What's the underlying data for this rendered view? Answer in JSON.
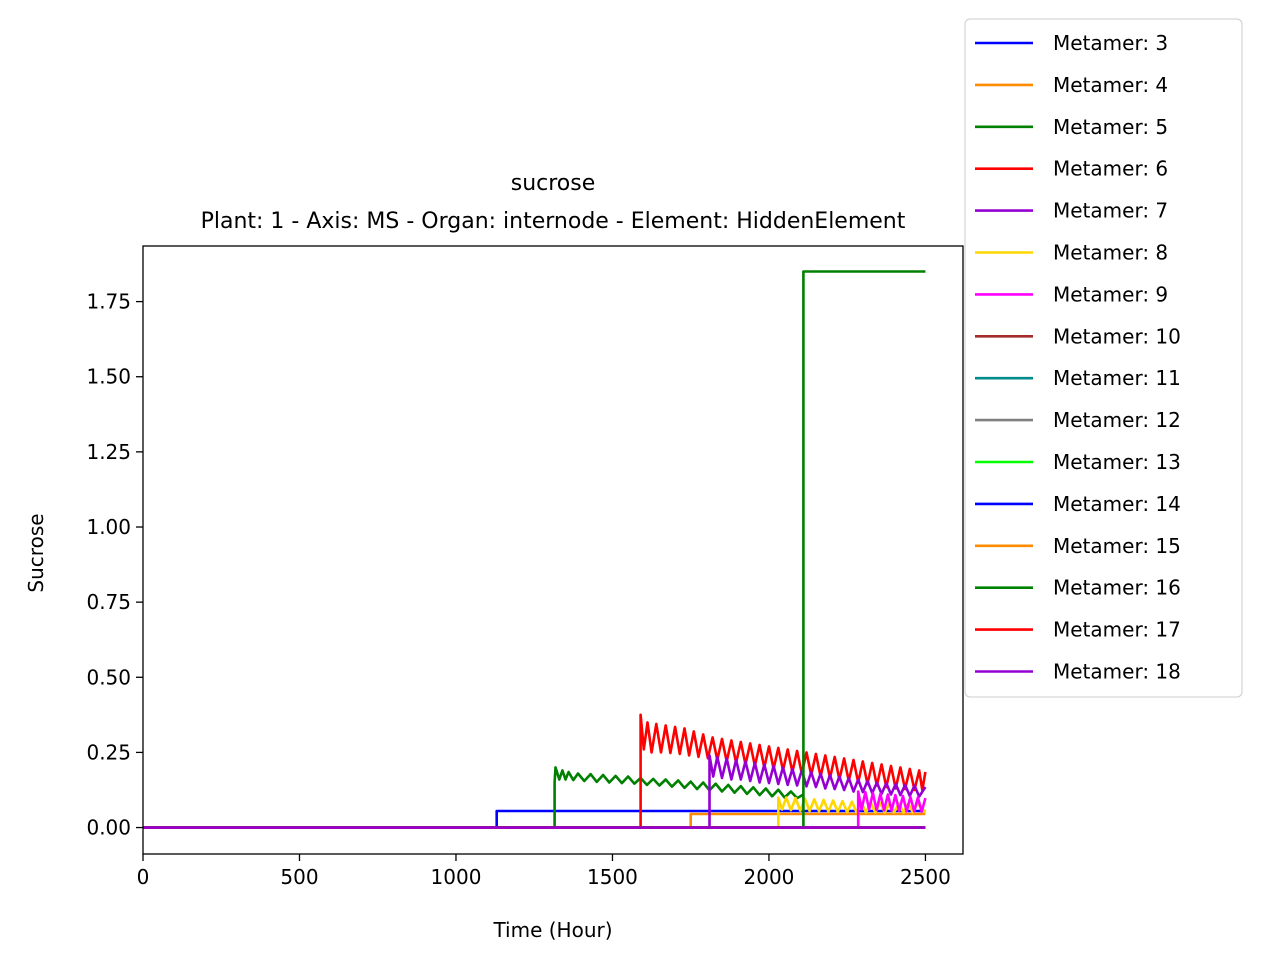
{
  "chart_data": {
    "type": "line",
    "title": "sucrose",
    "subtitle": "Plant: 1 - Axis: MS - Organ: internode - Element: HiddenElement",
    "xlabel": "Time (Hour)",
    "ylabel": "Sucrose",
    "xlim": [
      0,
      2620
    ],
    "ylim": [
      -0.088,
      1.935
    ],
    "xticks": [
      0,
      500,
      1000,
      1500,
      2000,
      2500
    ],
    "xtick_labels": [
      "0",
      "500",
      "1000",
      "1500",
      "2000",
      "2500"
    ],
    "yticks": [
      0.0,
      0.25,
      0.5,
      0.75,
      1.0,
      1.25,
      1.5,
      1.75
    ],
    "ytick_labels": [
      "0.00",
      "0.25",
      "0.50",
      "0.75",
      "1.00",
      "1.25",
      "1.50",
      "1.75"
    ],
    "grid": false,
    "legend_position": "upper-right-outside",
    "series": [
      {
        "name": "Metamer: 3",
        "color": "#0000ff",
        "points": [
          [
            0,
            0
          ],
          [
            1130,
            0
          ],
          [
            1130,
            0.055
          ],
          [
            2500,
            0.055
          ]
        ]
      },
      {
        "name": "Metamer: 4",
        "color": "#ff8c00",
        "points": [
          [
            0,
            0
          ],
          [
            1750,
            0
          ],
          [
            1750,
            0.045
          ],
          [
            2500,
            0.045
          ]
        ]
      },
      {
        "name": "Metamer: 5",
        "color": "#008000",
        "points": [
          [
            0,
            0
          ],
          [
            1315,
            0
          ],
          [
            1315,
            0.15
          ],
          [
            1318,
            0.2
          ],
          [
            1330,
            0.16
          ],
          [
            1340,
            0.19
          ],
          [
            1350,
            0.16
          ],
          [
            1360,
            0.185
          ],
          [
            1375,
            0.158
          ],
          [
            1390,
            0.18
          ],
          [
            1410,
            0.155
          ],
          [
            1430,
            0.178
          ],
          [
            1450,
            0.152
          ],
          [
            1470,
            0.175
          ],
          [
            1490,
            0.15
          ],
          [
            1510,
            0.172
          ],
          [
            1530,
            0.148
          ],
          [
            1550,
            0.17
          ],
          [
            1570,
            0.146
          ],
          [
            1590,
            0.165
          ],
          [
            1610,
            0.142
          ],
          [
            1630,
            0.162
          ],
          [
            1650,
            0.14
          ],
          [
            1670,
            0.16
          ],
          [
            1690,
            0.136
          ],
          [
            1710,
            0.157
          ],
          [
            1730,
            0.132
          ],
          [
            1750,
            0.153
          ],
          [
            1770,
            0.128
          ],
          [
            1790,
            0.15
          ],
          [
            1810,
            0.124
          ],
          [
            1830,
            0.146
          ],
          [
            1850,
            0.12
          ],
          [
            1870,
            0.142
          ],
          [
            1890,
            0.116
          ],
          [
            1910,
            0.138
          ],
          [
            1930,
            0.112
          ],
          [
            1950,
            0.134
          ],
          [
            1970,
            0.108
          ],
          [
            1990,
            0.13
          ],
          [
            2010,
            0.104
          ],
          [
            2030,
            0.126
          ],
          [
            2050,
            0.1
          ],
          [
            2070,
            0.12
          ],
          [
            2090,
            0.098
          ],
          [
            2110,
            0.11
          ]
        ]
      },
      {
        "name": "Metamer: 6",
        "color": "#ff0000",
        "points": [
          [
            0,
            0
          ],
          [
            1590,
            0
          ],
          [
            1590,
            0.375
          ],
          [
            1600,
            0.26
          ],
          [
            1612,
            0.35
          ],
          [
            1625,
            0.25
          ],
          [
            1640,
            0.345
          ],
          [
            1655,
            0.25
          ],
          [
            1670,
            0.34
          ],
          [
            1685,
            0.248
          ],
          [
            1700,
            0.335
          ],
          [
            1715,
            0.245
          ],
          [
            1730,
            0.33
          ],
          [
            1745,
            0.24
          ],
          [
            1760,
            0.32
          ],
          [
            1775,
            0.235
          ],
          [
            1790,
            0.31
          ],
          [
            1805,
            0.23
          ],
          [
            1820,
            0.3
          ],
          [
            1835,
            0.225
          ],
          [
            1850,
            0.295
          ],
          [
            1865,
            0.22
          ],
          [
            1880,
            0.29
          ],
          [
            1895,
            0.215
          ],
          [
            1910,
            0.285
          ],
          [
            1925,
            0.21
          ],
          [
            1940,
            0.28
          ],
          [
            1955,
            0.205
          ],
          [
            1970,
            0.275
          ],
          [
            1985,
            0.2
          ],
          [
            2000,
            0.27
          ],
          [
            2015,
            0.195
          ],
          [
            2030,
            0.265
          ],
          [
            2045,
            0.19
          ],
          [
            2060,
            0.26
          ],
          [
            2075,
            0.185
          ],
          [
            2090,
            0.255
          ],
          [
            2105,
            0.18
          ],
          [
            2120,
            0.25
          ],
          [
            2135,
            0.175
          ],
          [
            2150,
            0.245
          ],
          [
            2165,
            0.17
          ],
          [
            2180,
            0.24
          ],
          [
            2195,
            0.165
          ],
          [
            2210,
            0.235
          ],
          [
            2225,
            0.16
          ],
          [
            2240,
            0.23
          ],
          [
            2255,
            0.155
          ],
          [
            2270,
            0.225
          ],
          [
            2285,
            0.15
          ],
          [
            2300,
            0.22
          ],
          [
            2315,
            0.145
          ],
          [
            2330,
            0.215
          ],
          [
            2345,
            0.14
          ],
          [
            2360,
            0.21
          ],
          [
            2375,
            0.135
          ],
          [
            2390,
            0.205
          ],
          [
            2405,
            0.13
          ],
          [
            2420,
            0.2
          ],
          [
            2435,
            0.128
          ],
          [
            2450,
            0.195
          ],
          [
            2465,
            0.125
          ],
          [
            2480,
            0.19
          ],
          [
            2490,
            0.125
          ],
          [
            2500,
            0.185
          ]
        ]
      },
      {
        "name": "Metamer: 7",
        "color": "#9400d3",
        "points": [
          [
            0,
            0
          ],
          [
            1810,
            0
          ],
          [
            1810,
            0.24
          ],
          [
            1822,
            0.17
          ],
          [
            1835,
            0.235
          ],
          [
            1850,
            0.165
          ],
          [
            1865,
            0.23
          ],
          [
            1880,
            0.16
          ],
          [
            1895,
            0.225
          ],
          [
            1910,
            0.16
          ],
          [
            1925,
            0.22
          ],
          [
            1940,
            0.155
          ],
          [
            1955,
            0.215
          ],
          [
            1970,
            0.15
          ],
          [
            1985,
            0.21
          ],
          [
            2000,
            0.148
          ],
          [
            2015,
            0.205
          ],
          [
            2030,
            0.145
          ],
          [
            2045,
            0.2
          ],
          [
            2060,
            0.142
          ],
          [
            2075,
            0.195
          ],
          [
            2090,
            0.14
          ],
          [
            2105,
            0.19
          ],
          [
            2120,
            0.137
          ],
          [
            2135,
            0.185
          ],
          [
            2150,
            0.135
          ],
          [
            2165,
            0.18
          ],
          [
            2180,
            0.13
          ],
          [
            2195,
            0.175
          ],
          [
            2210,
            0.128
          ],
          [
            2225,
            0.17
          ],
          [
            2240,
            0.125
          ],
          [
            2255,
            0.165
          ],
          [
            2270,
            0.12
          ],
          [
            2285,
            0.16
          ],
          [
            2300,
            0.118
          ],
          [
            2315,
            0.155
          ],
          [
            2330,
            0.115
          ],
          [
            2345,
            0.15
          ],
          [
            2360,
            0.112
          ],
          [
            2375,
            0.148
          ],
          [
            2390,
            0.11
          ],
          [
            2405,
            0.145
          ],
          [
            2420,
            0.108
          ],
          [
            2435,
            0.142
          ],
          [
            2450,
            0.105
          ],
          [
            2465,
            0.14
          ],
          [
            2480,
            0.103
          ],
          [
            2500,
            0.135
          ]
        ]
      },
      {
        "name": "Metamer: 8",
        "color": "#ffd700",
        "points": [
          [
            0,
            0
          ],
          [
            2030,
            0
          ],
          [
            2030,
            0.1
          ],
          [
            2042,
            0.06
          ],
          [
            2055,
            0.1
          ],
          [
            2070,
            0.058
          ],
          [
            2085,
            0.098
          ],
          [
            2100,
            0.056
          ],
          [
            2115,
            0.096
          ],
          [
            2130,
            0.055
          ],
          [
            2145,
            0.094
          ],
          [
            2160,
            0.054
          ],
          [
            2175,
            0.092
          ],
          [
            2190,
            0.053
          ],
          [
            2205,
            0.09
          ],
          [
            2220,
            0.052
          ],
          [
            2235,
            0.088
          ],
          [
            2250,
            0.051
          ],
          [
            2265,
            0.086
          ],
          [
            2280,
            0.05
          ],
          [
            2295,
            0.084
          ],
          [
            2310,
            0.05
          ],
          [
            2325,
            0.083
          ],
          [
            2340,
            0.05
          ],
          [
            2355,
            0.082
          ],
          [
            2370,
            0.05
          ],
          [
            2385,
            0.081
          ],
          [
            2400,
            0.05
          ],
          [
            2415,
            0.08
          ],
          [
            2430,
            0.05
          ],
          [
            2445,
            0.08
          ],
          [
            2460,
            0.05
          ],
          [
            2475,
            0.08
          ],
          [
            2500,
            0.05
          ]
        ]
      },
      {
        "name": "Metamer: 9",
        "color": "#ff00ff",
        "points": [
          [
            0,
            0
          ],
          [
            2285,
            0
          ],
          [
            2285,
            0.12
          ],
          [
            2296,
            0.06
          ],
          [
            2308,
            0.118
          ],
          [
            2320,
            0.06
          ],
          [
            2332,
            0.115
          ],
          [
            2344,
            0.058
          ],
          [
            2356,
            0.112
          ],
          [
            2368,
            0.057
          ],
          [
            2380,
            0.11
          ],
          [
            2392,
            0.056
          ],
          [
            2404,
            0.108
          ],
          [
            2416,
            0.055
          ],
          [
            2428,
            0.105
          ],
          [
            2440,
            0.054
          ],
          [
            2452,
            0.102
          ],
          [
            2464,
            0.054
          ],
          [
            2476,
            0.1
          ],
          [
            2488,
            0.053
          ],
          [
            2500,
            0.098
          ]
        ]
      },
      {
        "name": "Metamer: 10",
        "color": "#a52a2a",
        "points": [
          [
            0,
            0
          ],
          [
            2500,
            0
          ]
        ]
      },
      {
        "name": "Metamer: 11",
        "color": "#008b8b",
        "points": [
          [
            0,
            0
          ],
          [
            2500,
            0
          ]
        ]
      },
      {
        "name": "Metamer: 12",
        "color": "#808080",
        "points": [
          [
            0,
            0
          ],
          [
            2500,
            0
          ]
        ]
      },
      {
        "name": "Metamer: 13",
        "color": "#00ff00",
        "points": [
          [
            0,
            0
          ],
          [
            2500,
            0
          ]
        ]
      },
      {
        "name": "Metamer: 14",
        "color": "#0000ff",
        "points": [
          [
            0,
            0
          ],
          [
            2500,
            0
          ]
        ]
      },
      {
        "name": "Metamer: 15",
        "color": "#ff8c00",
        "points": [
          [
            0,
            0
          ],
          [
            2500,
            0
          ]
        ]
      },
      {
        "name": "Metamer: 16",
        "color": "#008000",
        "points": [
          [
            0,
            0
          ],
          [
            2110,
            0
          ],
          [
            2110,
            1.85
          ],
          [
            2500,
            1.85
          ]
        ]
      },
      {
        "name": "Metamer: 17",
        "color": "#ff0000",
        "points": [
          [
            0,
            0
          ],
          [
            2500,
            0
          ]
        ]
      },
      {
        "name": "Metamer: 18",
        "color": "#9400d3",
        "points": [
          [
            0,
            0
          ],
          [
            2500,
            0
          ]
        ]
      }
    ]
  }
}
